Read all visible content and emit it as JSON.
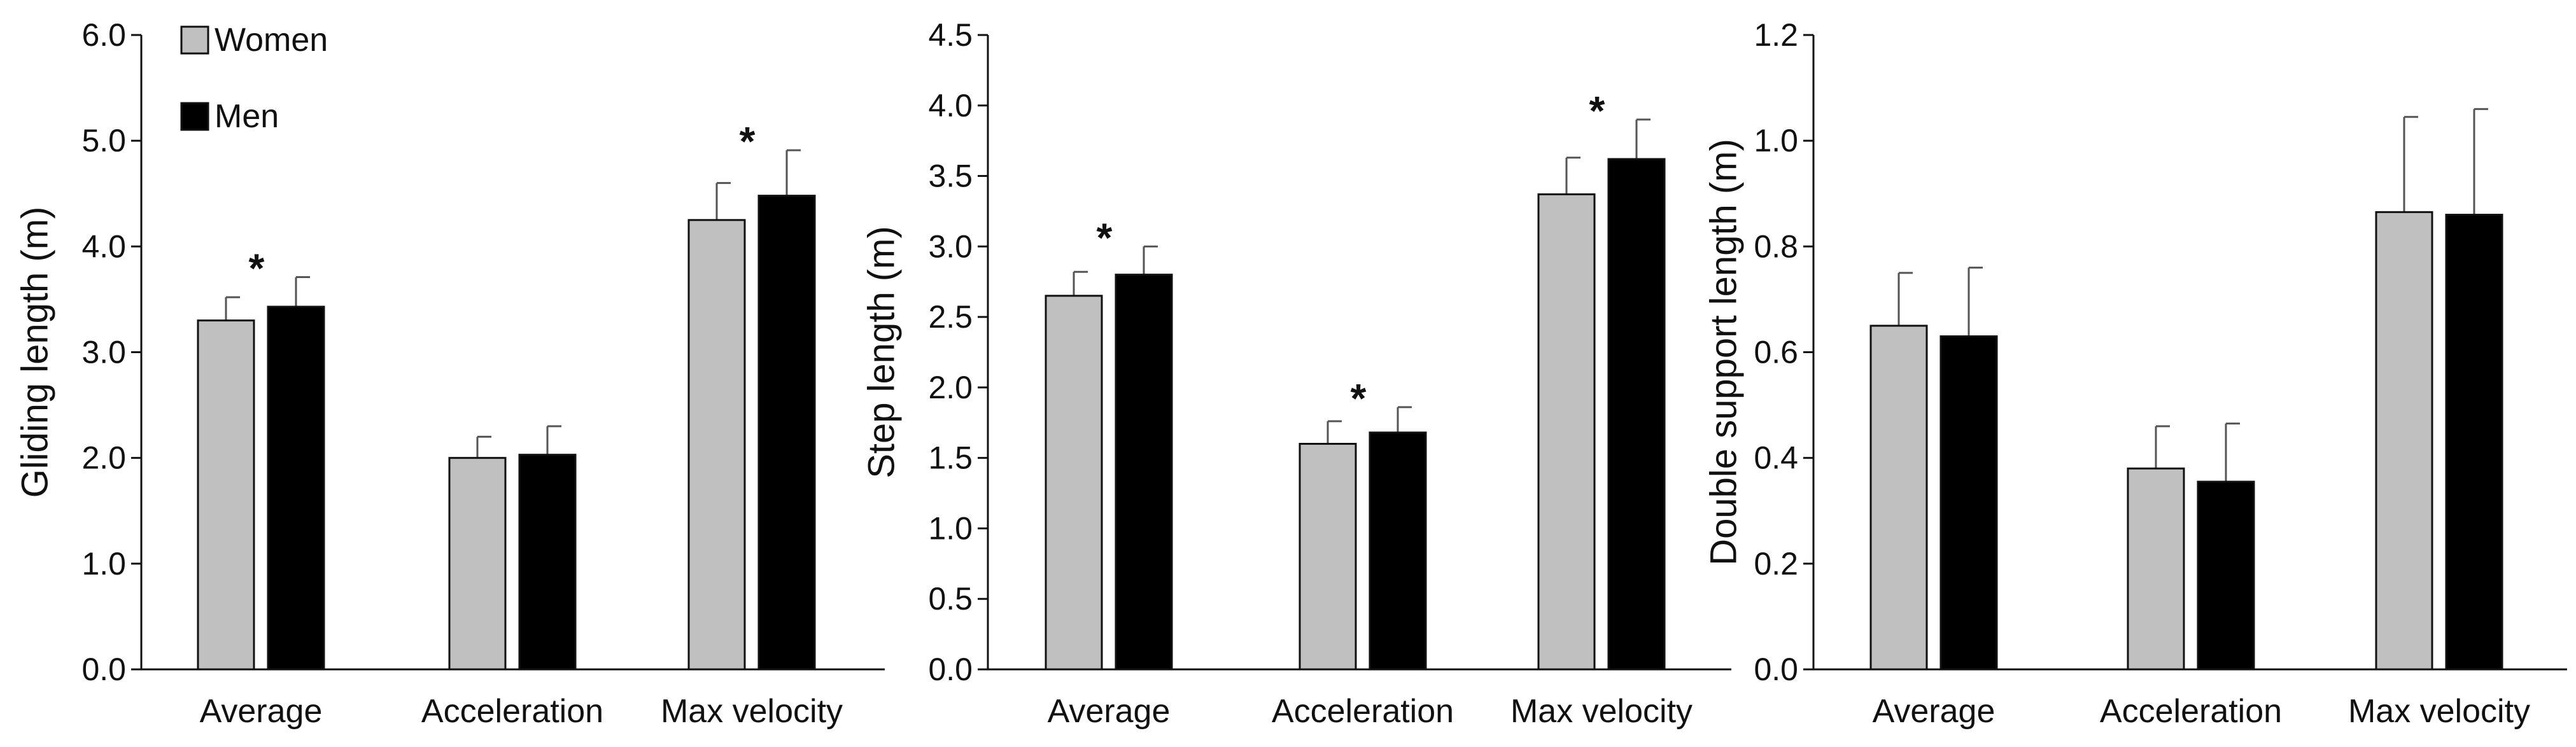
{
  "legend": [
    {
      "name": "Women",
      "color": "#c0c0c0"
    },
    {
      "name": "Men",
      "color": "#000000"
    }
  ],
  "chart_data": [
    {
      "type": "bar",
      "categories": [
        "Average",
        "Acceleration",
        "Max velocity"
      ],
      "series": [
        {
          "name": "Women",
          "values": [
            3.3,
            2.0,
            4.25
          ],
          "errors": [
            0.22,
            0.2,
            0.35
          ],
          "color": "#c0c0c0"
        },
        {
          "name": "Men",
          "values": [
            3.43,
            2.03,
            4.48
          ],
          "errors": [
            0.28,
            0.27,
            0.43
          ],
          "color": "#000000"
        }
      ],
      "significance": [
        {
          "category": 0,
          "series": 1,
          "label": "*"
        },
        {
          "category": 2,
          "series": 1,
          "label": "*"
        }
      ],
      "xlabel": "",
      "ylabel": "Gliding length (m)",
      "ylim": [
        0,
        6
      ],
      "yticks": [
        "0.0",
        "1.0",
        "2.0",
        "3.0",
        "4.0",
        "5.0",
        "6.0"
      ],
      "legend_position": "top-left"
    },
    {
      "type": "bar",
      "categories": [
        "Average",
        "Acceleration",
        "Max velocity"
      ],
      "series": [
        {
          "name": "Women",
          "values": [
            2.65,
            1.6,
            3.37
          ],
          "errors": [
            0.17,
            0.16,
            0.26
          ],
          "color": "#c0c0c0"
        },
        {
          "name": "Men",
          "values": [
            2.8,
            1.68,
            3.62
          ],
          "errors": [
            0.2,
            0.18,
            0.28
          ],
          "color": "#000000"
        }
      ],
      "significance": [
        {
          "category": 0,
          "series": 1,
          "label": "*"
        },
        {
          "category": 1,
          "series": 1,
          "label": "*"
        },
        {
          "category": 2,
          "series": 1,
          "label": "*"
        }
      ],
      "xlabel": "",
      "ylabel": "Step length (m)",
      "ylim": [
        0,
        4.5
      ],
      "yticks": [
        "0.0",
        "0.5",
        "1.0",
        "1.5",
        "2.0",
        "2.5",
        "3.0",
        "3.5",
        "4.0",
        "4.5"
      ]
    },
    {
      "type": "bar",
      "categories": [
        "Average",
        "Acceleration",
        "Max velocity"
      ],
      "series": [
        {
          "name": "Women",
          "values": [
            0.65,
            0.38,
            0.865
          ],
          "errors": [
            0.1,
            0.08,
            0.18
          ],
          "color": "#c0c0c0"
        },
        {
          "name": "Men",
          "values": [
            0.63,
            0.355,
            0.86
          ],
          "errors": [
            0.13,
            0.11,
            0.2
          ],
          "color": "#000000"
        }
      ],
      "significance": [],
      "xlabel": "",
      "ylabel": "Double support length (m)",
      "ylim": [
        0,
        1.2
      ],
      "yticks": [
        "0.0",
        "0.2",
        "0.4",
        "0.6",
        "0.8",
        "1.0",
        "1.2"
      ]
    }
  ]
}
